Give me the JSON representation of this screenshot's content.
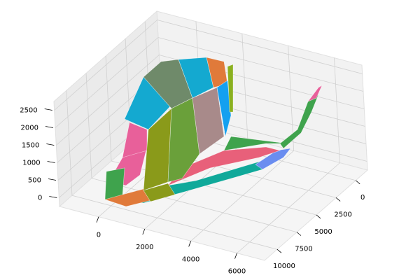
{
  "chart_data": {
    "type": "surface3d",
    "xlim": [
      -1700,
      7200
    ],
    "xticks": [
      0,
      2000,
      4000,
      6000
    ],
    "ylim": [
      -1500,
      11600
    ],
    "yticks": [
      0,
      2500,
      5000,
      7500,
      10000
    ],
    "zlim": [
      -250,
      2750
    ],
    "zticks": [
      0,
      500,
      1000,
      1500,
      2000,
      2500
    ],
    "grid": true
  }
}
